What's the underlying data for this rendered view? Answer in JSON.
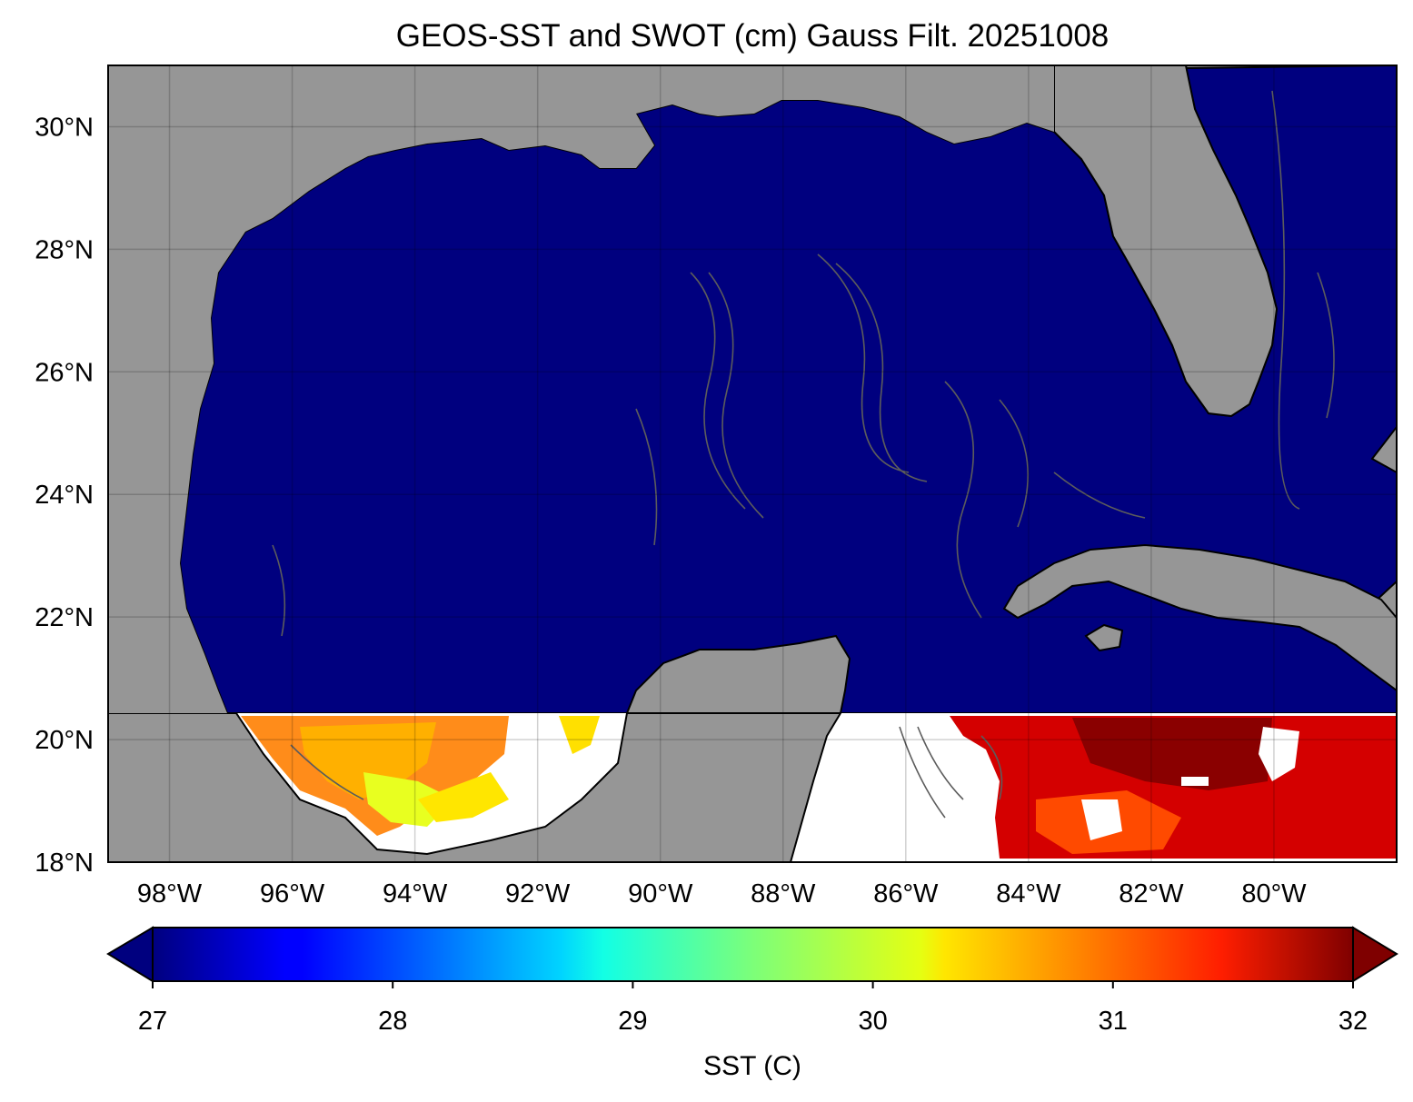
{
  "title": "GEOS-SST  and SWOT (cm) Gauss Filt. 20251008",
  "map": {
    "lon_range": [
      -99,
      -78
    ],
    "lat_range": [
      18,
      31
    ],
    "lat_ticks": [
      {
        "value": 30,
        "label": "30°N"
      },
      {
        "value": 28,
        "label": "28°N"
      },
      {
        "value": 26,
        "label": "26°N"
      },
      {
        "value": 24,
        "label": "24°N"
      },
      {
        "value": 22,
        "label": "22°N"
      },
      {
        "value": 20,
        "label": "20°N"
      },
      {
        "value": 18,
        "label": "18°N"
      }
    ],
    "lon_ticks": [
      {
        "value": -98,
        "label": "98°W"
      },
      {
        "value": -96,
        "label": "96°W"
      },
      {
        "value": -94,
        "label": "94°W"
      },
      {
        "value": -92,
        "label": "92°W"
      },
      {
        "value": -90,
        "label": "90°W"
      },
      {
        "value": -88,
        "label": "88°W"
      },
      {
        "value": -86,
        "label": "86°W"
      },
      {
        "value": -84,
        "label": "84°W"
      },
      {
        "value": -82,
        "label": "82°W"
      },
      {
        "value": -80,
        "label": "80°W"
      }
    ],
    "gridlines": true,
    "colors": {
      "land": "#969696",
      "ocean_low_sst": "#00007f",
      "missing": "#ffffff",
      "contour": "#595959",
      "coastline": "#000000"
    }
  },
  "colorbar": {
    "label": "SST (C)",
    "min": 27,
    "max": 32,
    "extend": "both",
    "colormap": "jet",
    "ticks": [
      {
        "value": 27,
        "label": "27"
      },
      {
        "value": 28,
        "label": "28"
      },
      {
        "value": 29,
        "label": "29"
      },
      {
        "value": 30,
        "label": "30"
      },
      {
        "value": 31,
        "label": "31"
      },
      {
        "value": 32,
        "label": "32"
      }
    ]
  }
}
